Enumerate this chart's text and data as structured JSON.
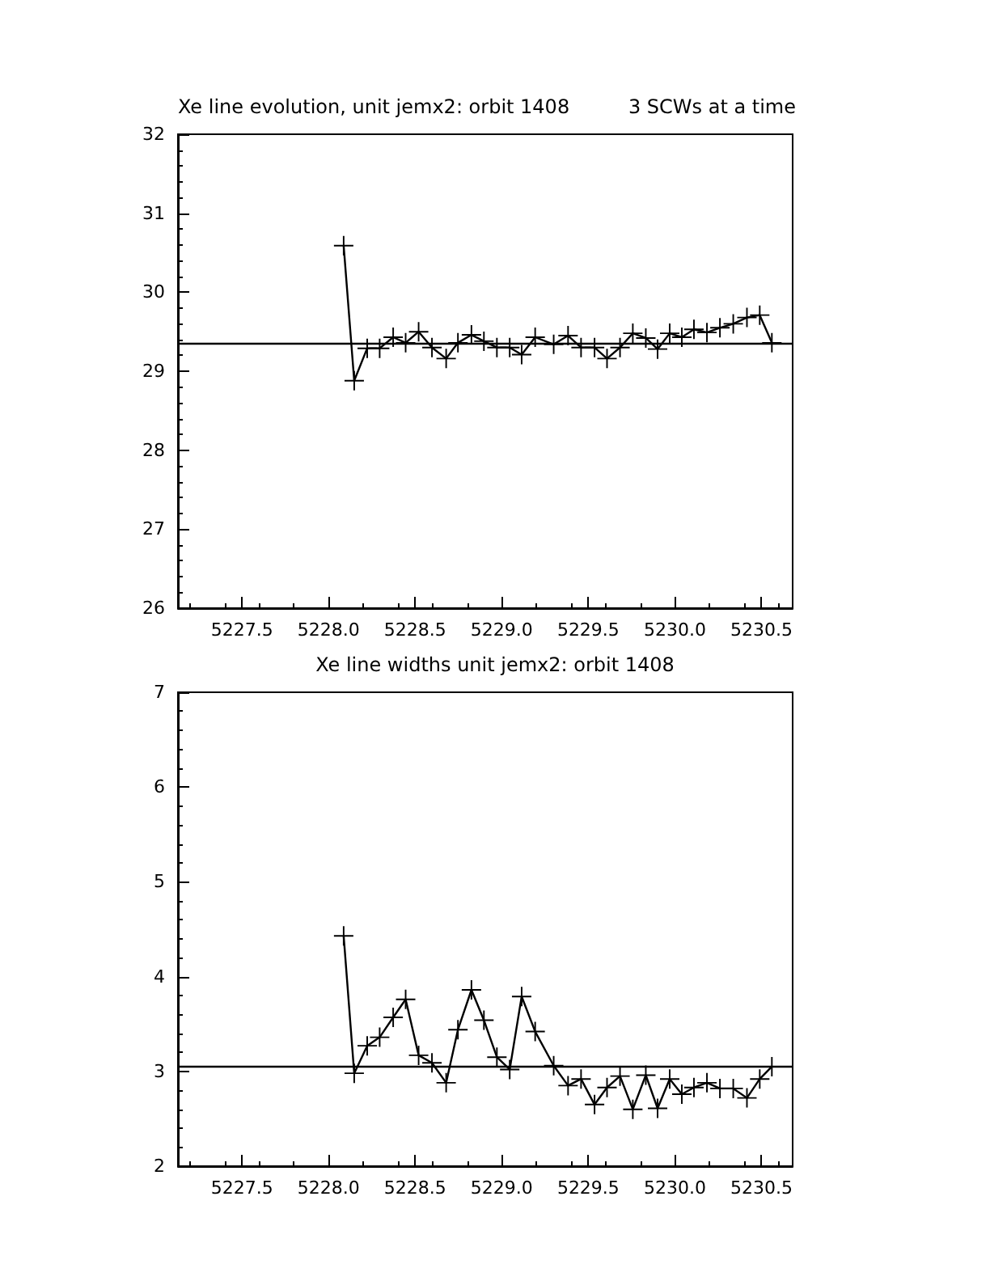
{
  "chart_data": [
    {
      "type": "line",
      "title": "Xe line evolution, unit jemx2: orbit 1408",
      "subtitle": "3 SCWs at a time",
      "x": [
        5228.087,
        5228.148,
        5228.223,
        5228.295,
        5228.373,
        5228.445,
        5228.52,
        5228.597,
        5228.679,
        5228.747,
        5228.825,
        5228.897,
        5228.972,
        5229.046,
        5229.115,
        5229.193,
        5229.3,
        5229.383,
        5229.458,
        5229.536,
        5229.608,
        5229.683,
        5229.757,
        5229.832,
        5229.9,
        5229.97,
        5230.04,
        5230.11,
        5230.185,
        5230.26,
        5230.337,
        5230.416,
        5230.49,
        5230.56
      ],
      "series": [
        {
          "color": "#000000",
          "values": [
            30.59,
            28.88,
            29.29,
            29.29,
            29.43,
            29.36,
            29.5,
            29.3,
            29.16,
            29.36,
            29.46,
            29.38,
            29.3,
            29.3,
            29.21,
            29.43,
            29.34,
            29.45,
            29.3,
            29.3,
            29.16,
            29.3,
            29.48,
            29.42,
            29.28,
            29.48,
            29.43,
            29.53,
            29.49,
            29.55,
            29.6,
            29.68,
            29.71,
            29.36
          ]
        }
      ],
      "xlim": [
        5227.13,
        5230.68
      ],
      "xticks": [
        5227.5,
        {
          "value": 5228,
          "label": "5228.0"
        },
        5228.5,
        {
          "value": 5229,
          "label": "5229.0"
        },
        5229.5,
        {
          "value": 5230,
          "label": "5230.0"
        },
        5230.5
      ],
      "ylim": [
        26,
        32
      ],
      "yticks": [
        26,
        27,
        28,
        29,
        30,
        31,
        32
      ],
      "ref_lines": [
        {
          "axis": "y",
          "value": 29.35,
          "color": "#000000"
        }
      ],
      "marker": "cross",
      "line_style": "solid",
      "grid": false
    },
    {
      "type": "line",
      "title": "Xe line widths unit jemx2: orbit 1408",
      "x": [
        5228.087,
        5228.148,
        5228.223,
        5228.295,
        5228.373,
        5228.445,
        5228.52,
        5228.597,
        5228.679,
        5228.747,
        5228.825,
        5228.897,
        5228.972,
        5229.046,
        5229.115,
        5229.193,
        5229.3,
        5229.383,
        5229.458,
        5229.536,
        5229.608,
        5229.683,
        5229.757,
        5229.832,
        5229.9,
        5229.97,
        5230.04,
        5230.11,
        5230.185,
        5230.26,
        5230.337,
        5230.416,
        5230.49,
        5230.56
      ],
      "series": [
        {
          "color": "#000000",
          "values": [
            4.43,
            2.98,
            3.27,
            3.36,
            3.57,
            3.76,
            3.17,
            3.09,
            2.88,
            3.44,
            3.86,
            3.54,
            3.15,
            3.02,
            3.79,
            3.42,
            3.06,
            2.85,
            2.92,
            2.65,
            2.83,
            2.95,
            2.6,
            2.96,
            2.61,
            2.92,
            2.76,
            2.83,
            2.88,
            2.82,
            2.82,
            2.72,
            2.92,
            3.05
          ]
        }
      ],
      "xlim": [
        5227.13,
        5230.68
      ],
      "xticks": [
        5227.5,
        {
          "value": 5228,
          "label": "5228.0"
        },
        5228.5,
        {
          "value": 5229,
          "label": "5229.0"
        },
        5229.5,
        {
          "value": 5230,
          "label": "5230.0"
        },
        5230.5
      ],
      "ylim": [
        2,
        7
      ],
      "yticks": [
        2,
        3,
        4,
        5,
        6,
        7
      ],
      "ref_lines": [
        {
          "axis": "y",
          "value": 3.05,
          "color": "#000000"
        }
      ],
      "marker": "cross",
      "line_style": "solid",
      "grid": false
    }
  ]
}
